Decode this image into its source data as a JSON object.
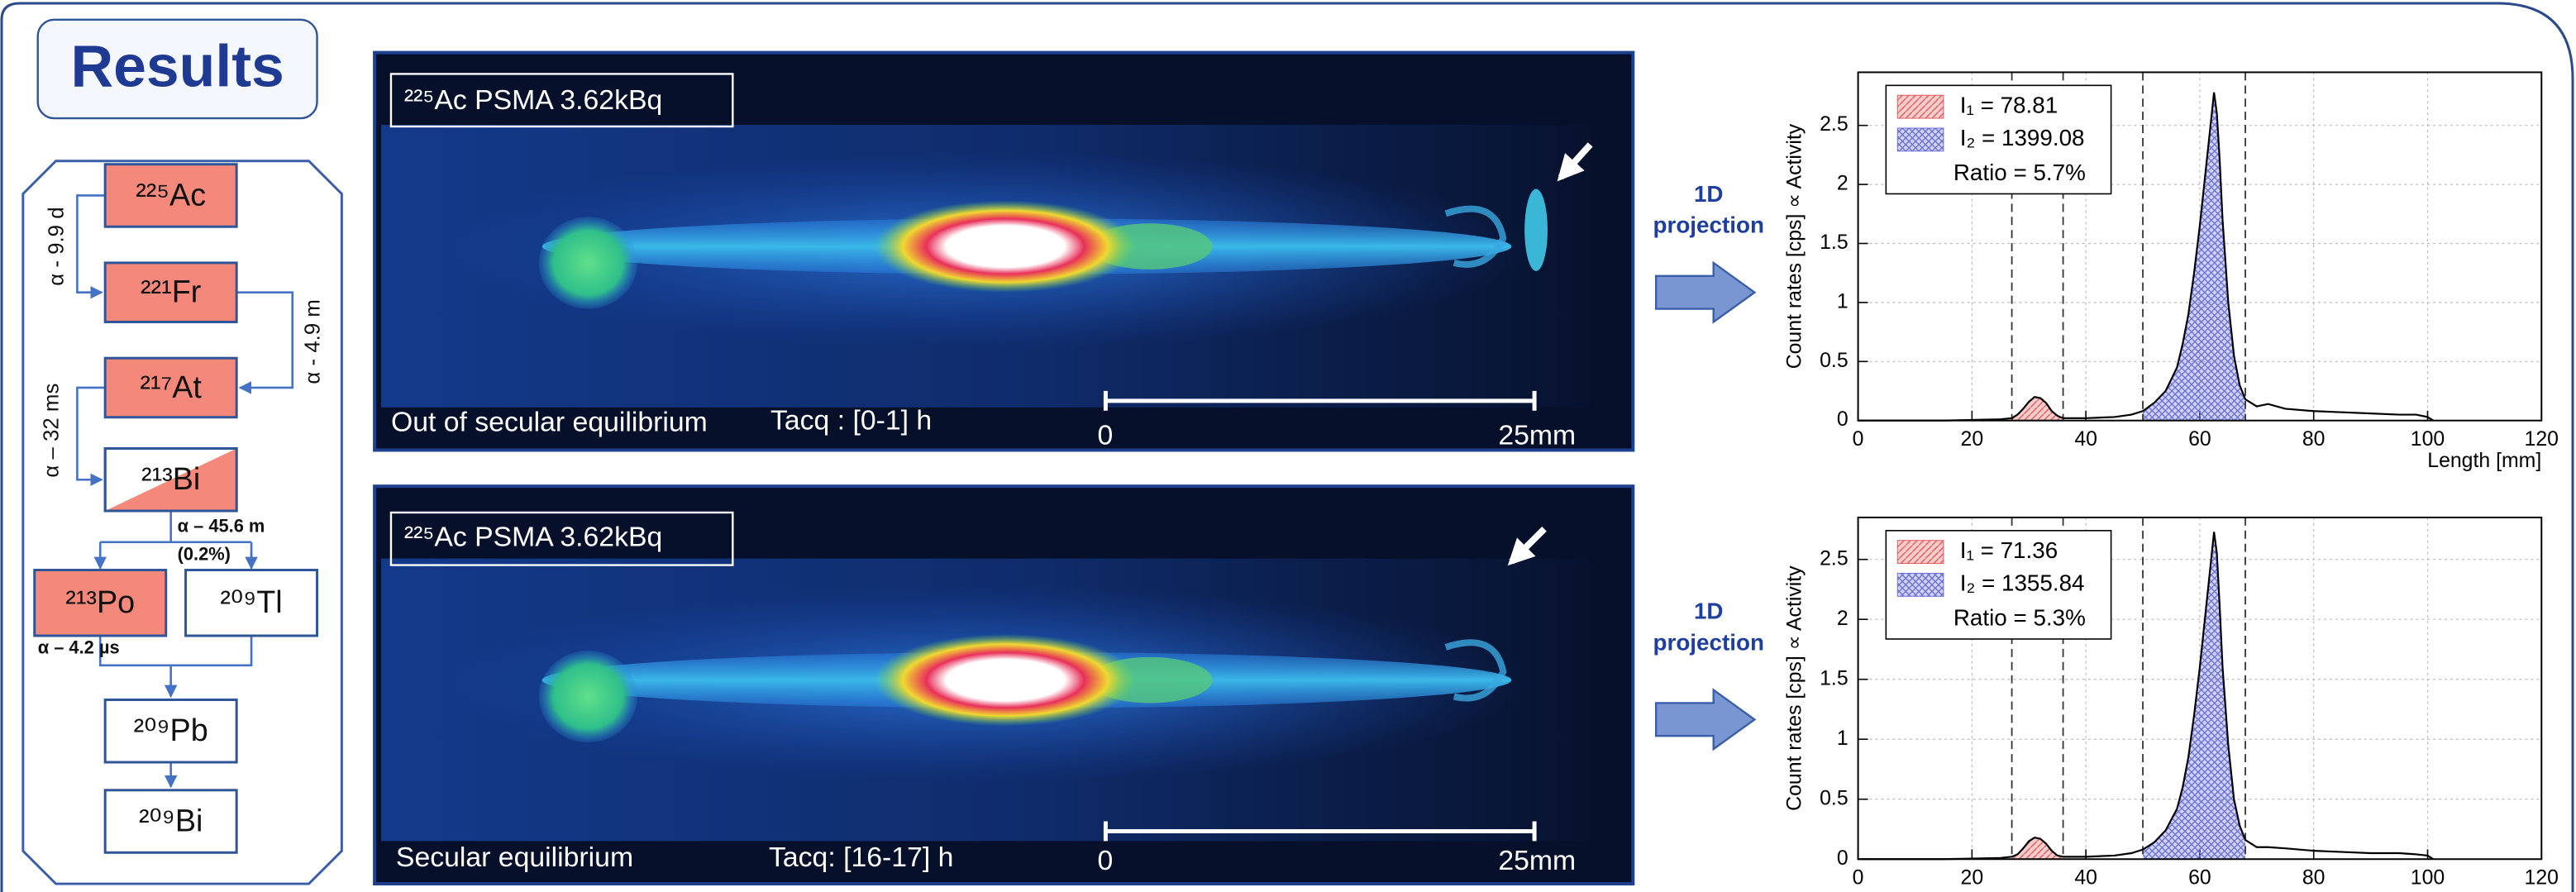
{
  "header": {
    "title": "Results"
  },
  "decay_chain": {
    "nodes": [
      {
        "label": "²²⁵Ac"
      },
      {
        "label": "²²¹Fr"
      },
      {
        "label": "²¹⁷At"
      },
      {
        "label": "²¹³Bi"
      },
      {
        "label": "²¹³Po"
      },
      {
        "label": "²⁰⁹Tl"
      },
      {
        "label": "²⁰⁹Pb"
      },
      {
        "label": "²⁰⁹Bi"
      }
    ],
    "transitions": [
      {
        "label": "α - 9.9 d"
      },
      {
        "label": "α - 4.9 m"
      },
      {
        "label": "α – 32 ms"
      },
      {
        "label": "α – 45.6 m"
      },
      {
        "label": "(0.2%)"
      },
      {
        "label": "α – 4.2 µs"
      }
    ]
  },
  "images": [
    {
      "label": "²²⁵Ac PSMA 3.62kBq",
      "caption": "Out of secular equilibrium",
      "tacq": "Tacq : [0-1] h",
      "scale_start": "0",
      "scale_end": "25mm"
    },
    {
      "label": "²²⁵Ac PSMA 3.62kBq",
      "caption": "Secular equilibrium",
      "tacq": "Tacq: [16-17] h",
      "scale_start": "0",
      "scale_end": "25mm"
    }
  ],
  "projections": [
    {
      "lines": [
        "1D",
        "projection"
      ]
    },
    {
      "lines": [
        "1D",
        "projection"
      ]
    }
  ],
  "chart_data": [
    {
      "type": "line",
      "ylabel": "Count rates [cps] ∝ Activity",
      "xlabel": "Length [mm]",
      "xlim": [
        0,
        120
      ],
      "ylim": [
        0,
        2.95
      ],
      "xticks": [
        0,
        20,
        40,
        60,
        80,
        100,
        120
      ],
      "yticks": [
        0,
        0.5,
        1,
        1.5,
        2,
        2.5
      ],
      "grid": true,
      "x": [
        0,
        5,
        10,
        15,
        20,
        25,
        27,
        28,
        29,
        30,
        31,
        32,
        33,
        34,
        35,
        36,
        38,
        40,
        45,
        48,
        50,
        52,
        54,
        56,
        57,
        58,
        59,
        60,
        61,
        62,
        62.5,
        63,
        63.5,
        64,
        65,
        66,
        67,
        68,
        70,
        72,
        75,
        80,
        85,
        90,
        95,
        98,
        100,
        101
      ],
      "series": [
        {
          "color": "#000000",
          "values": [
            0,
            0,
            0,
            0,
            0.005,
            0.01,
            0.02,
            0.05,
            0.1,
            0.16,
            0.2,
            0.19,
            0.15,
            0.08,
            0.04,
            0.02,
            0.02,
            0.02,
            0.03,
            0.05,
            0.08,
            0.15,
            0.25,
            0.45,
            0.65,
            0.9,
            1.25,
            1.65,
            2.1,
            2.55,
            2.78,
            2.6,
            2.2,
            1.7,
            1.0,
            0.55,
            0.3,
            0.18,
            0.12,
            0.14,
            0.1,
            0.08,
            0.07,
            0.06,
            0.05,
            0.05,
            0.03,
            0
          ]
        }
      ],
      "windows": [
        {
          "from": 27,
          "to": 36,
          "color": "#e05a5a",
          "name": "I₁ = 78.81"
        },
        {
          "from": 50,
          "to": 68,
          "color": "#6a70d8",
          "name": "I₂ = 1399.08"
        }
      ],
      "ratio": "Ratio = 5.7%"
    },
    {
      "type": "line",
      "ylabel": "Count rates [cps] ∝ Activity",
      "xlim": [
        0,
        120
      ],
      "ylim": [
        0,
        2.85
      ],
      "xticks": [
        0,
        20,
        40,
        60,
        80,
        100,
        120
      ],
      "yticks": [
        0,
        0.5,
        1,
        1.5,
        2,
        2.5
      ],
      "grid": true,
      "x": [
        0,
        5,
        10,
        15,
        20,
        25,
        27,
        28,
        29,
        30,
        31,
        32,
        33,
        34,
        35,
        36,
        38,
        40,
        45,
        48,
        50,
        52,
        54,
        56,
        57,
        58,
        59,
        60,
        61,
        62,
        62.5,
        63,
        63.5,
        64,
        65,
        66,
        67,
        68,
        70,
        72,
        75,
        80,
        85,
        90,
        95,
        98,
        100,
        101
      ],
      "series": [
        {
          "color": "#000000",
          "values": [
            0,
            0,
            0,
            0,
            0.005,
            0.01,
            0.02,
            0.04,
            0.09,
            0.15,
            0.18,
            0.17,
            0.13,
            0.07,
            0.03,
            0.02,
            0.02,
            0.02,
            0.03,
            0.05,
            0.08,
            0.14,
            0.24,
            0.42,
            0.6,
            0.85,
            1.2,
            1.6,
            2.05,
            2.5,
            2.73,
            2.55,
            2.1,
            1.6,
            0.95,
            0.5,
            0.28,
            0.16,
            0.1,
            0.1,
            0.09,
            0.07,
            0.06,
            0.05,
            0.05,
            0.04,
            0.03,
            0
          ]
        }
      ],
      "windows": [
        {
          "from": 27,
          "to": 36,
          "color": "#e05a5a",
          "name": "I₁ = 71.36"
        },
        {
          "from": 50,
          "to": 68,
          "color": "#6a70d8",
          "name": "I₂ = 1355.84"
        }
      ],
      "ratio": "Ratio = 5.3%"
    }
  ]
}
